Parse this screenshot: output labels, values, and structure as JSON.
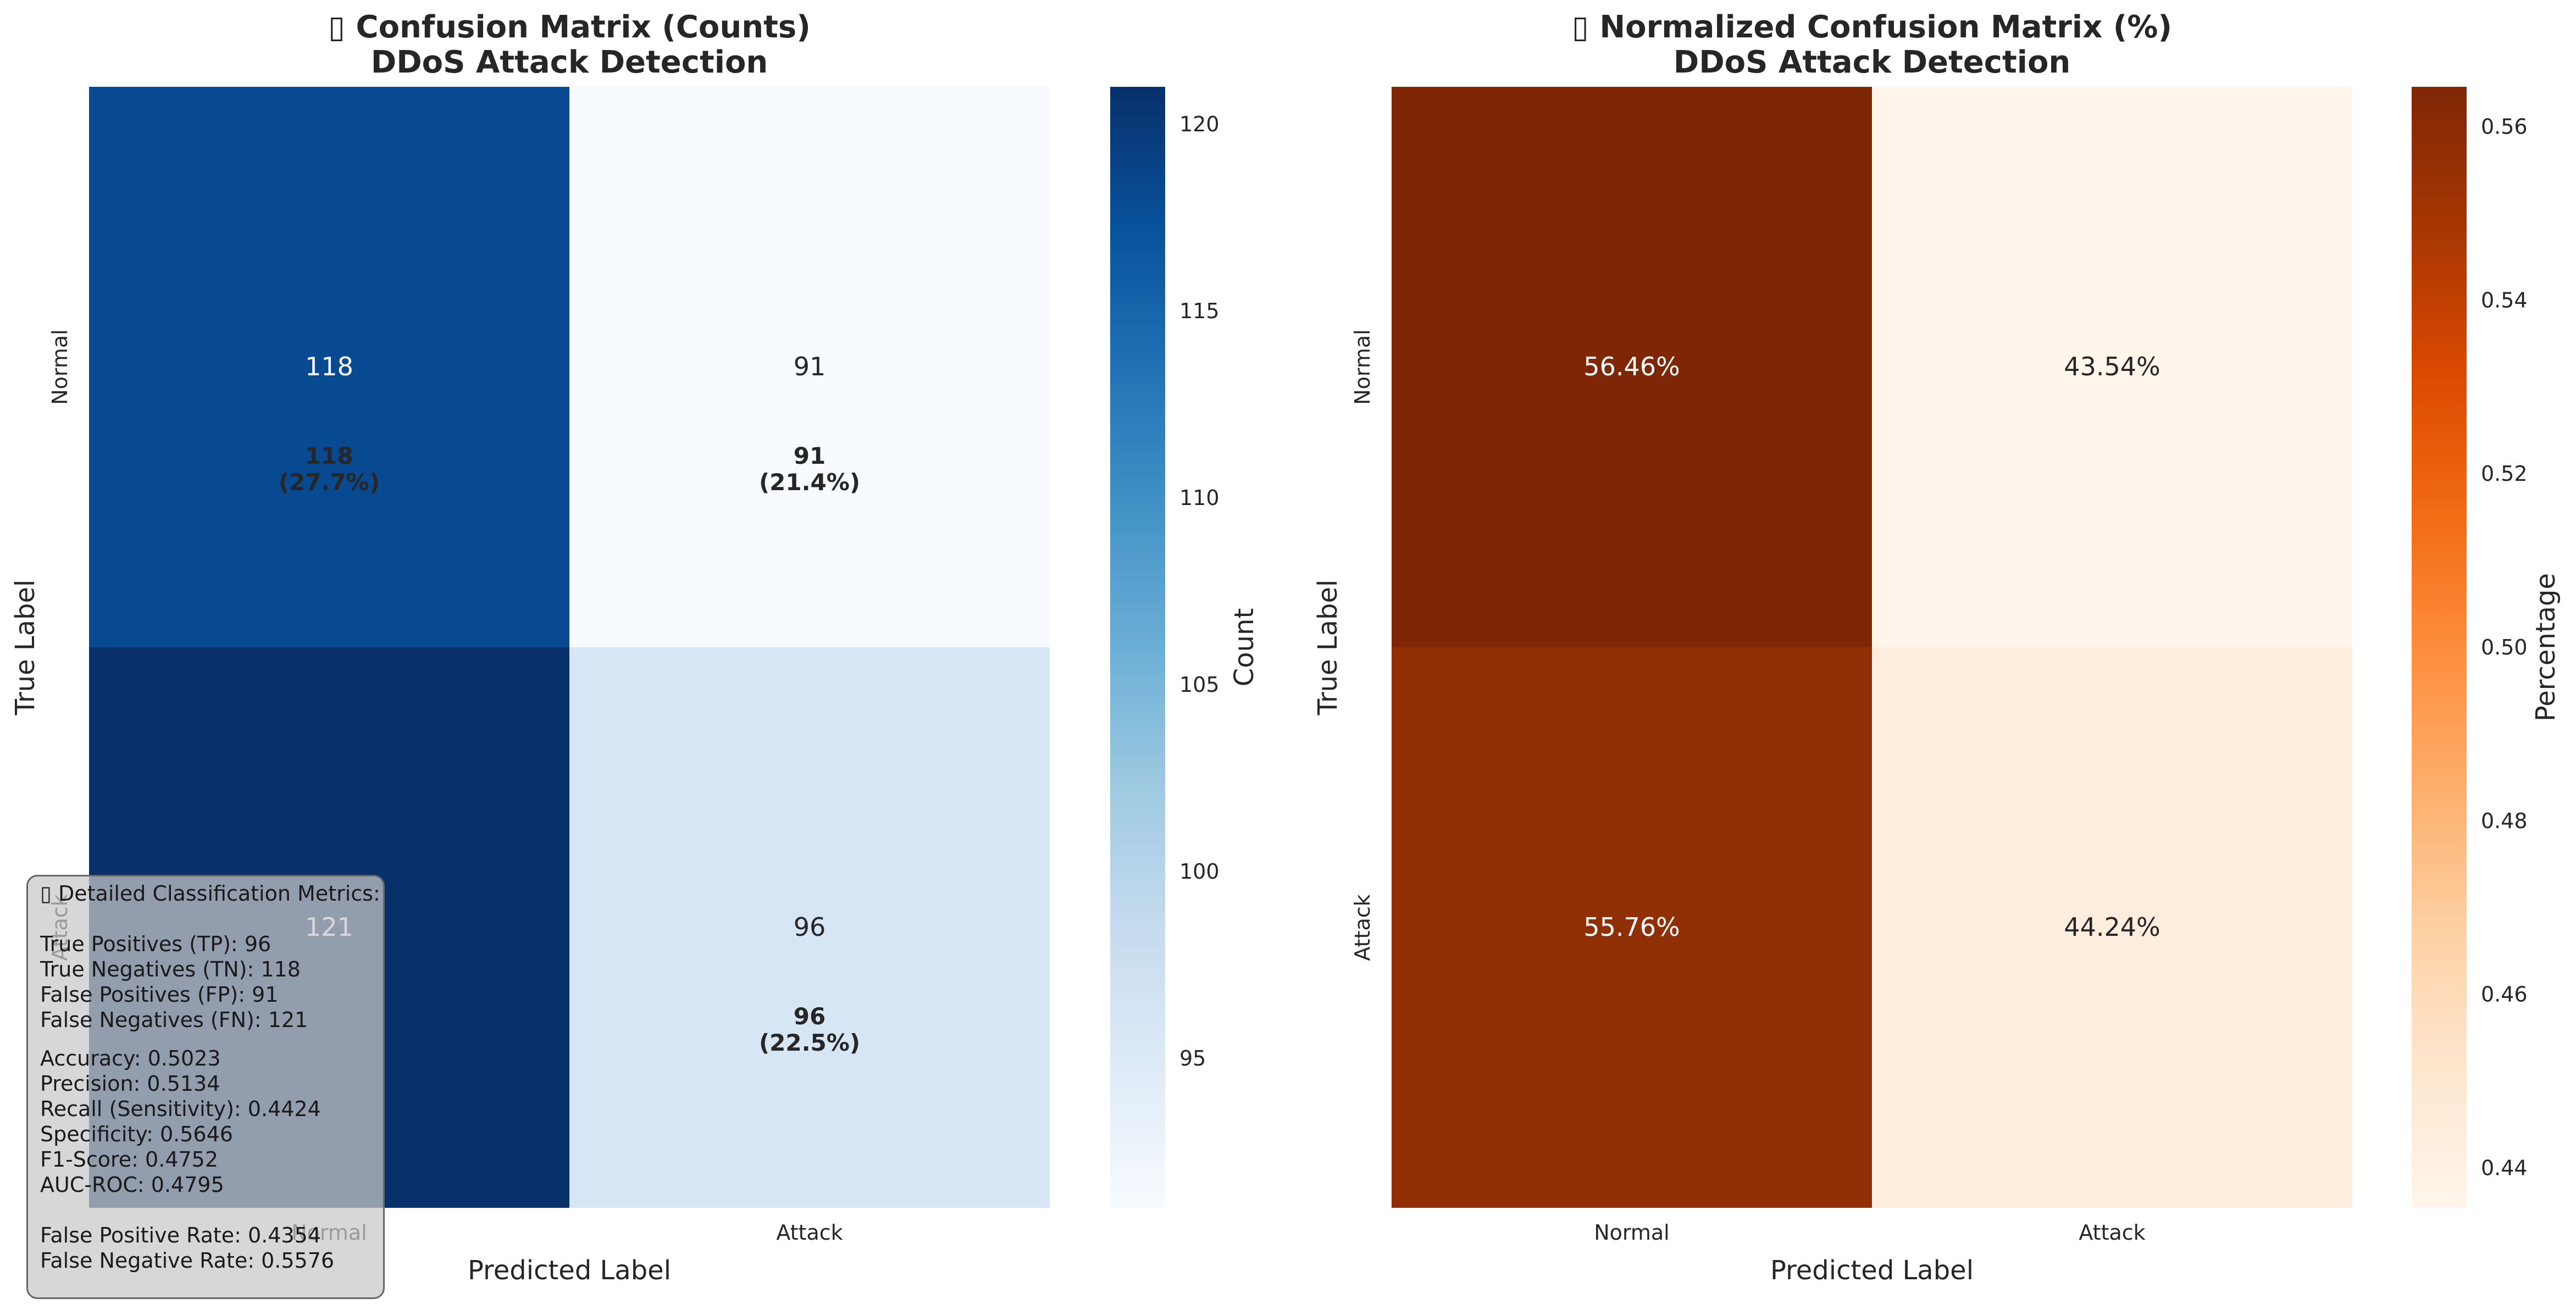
{
  "charts": [
    {
      "type": "heatmap",
      "title_line1": "▯ Confusion Matrix (Counts)",
      "title_line2": "DDoS Attack Detection",
      "xlabel": "Predicted Label",
      "ylabel": "True Label",
      "x_categories": [
        "Normal",
        "Attack"
      ],
      "y_categories": [
        "Normal",
        "Attack"
      ],
      "values": [
        [
          118,
          91
        ],
        [
          121,
          96
        ]
      ],
      "cell_text": [
        [
          "118",
          "91"
        ],
        [
          "121",
          "96"
        ]
      ],
      "overlay_text": [
        [
          "118\n(27.7%)",
          "91\n(21.4%)"
        ],
        [
          "",
          "96\n(22.5%)"
        ]
      ],
      "colormap": "Blues",
      "colorbar": {
        "label": "Count",
        "range": [
          91,
          121
        ],
        "ticks": [
          95,
          100,
          105,
          110,
          115,
          120
        ]
      }
    },
    {
      "type": "heatmap",
      "title_line1": "▯ Normalized Confusion Matrix (%)",
      "title_line2": "DDoS Attack Detection",
      "xlabel": "Predicted Label",
      "ylabel": "True Label",
      "x_categories": [
        "Normal",
        "Attack"
      ],
      "y_categories": [
        "Normal",
        "Attack"
      ],
      "values": [
        [
          0.5646,
          0.4354
        ],
        [
          0.5576,
          0.4424
        ]
      ],
      "cell_text": [
        [
          "56.46%",
          "43.54%"
        ],
        [
          "55.76%",
          "44.24%"
        ]
      ],
      "colormap": "Oranges",
      "colorbar": {
        "label": "Percentage",
        "range": [
          0.4354,
          0.5646
        ],
        "ticks": [
          0.44,
          0.46,
          0.48,
          0.5,
          0.52,
          0.54,
          0.56
        ],
        "tick_labels": [
          "0.44",
          "0.46",
          "0.48",
          "0.50",
          "0.52",
          "0.54",
          "0.56"
        ]
      }
    }
  ],
  "metrics": {
    "header": "▯ Detailed Classification Metrics:",
    "tp": "True Positives (TP): 96",
    "tn": "True Negatives (TN): 118",
    "fp": "False Positives (FP): 91",
    "fn": "False Negatives (FN): 121",
    "accuracy": "Accuracy: 0.5023",
    "precision": "Precision: 0.5134",
    "recall": "Recall (Sensitivity): 0.4424",
    "specificity": "Specificity: 0.5646",
    "f1": "F1-Score: 0.4752",
    "auc": "AUC-ROC: 0.4795",
    "fpr": "False Positive Rate: 0.4354",
    "fnr": "False Negative Rate: 0.5576"
  }
}
